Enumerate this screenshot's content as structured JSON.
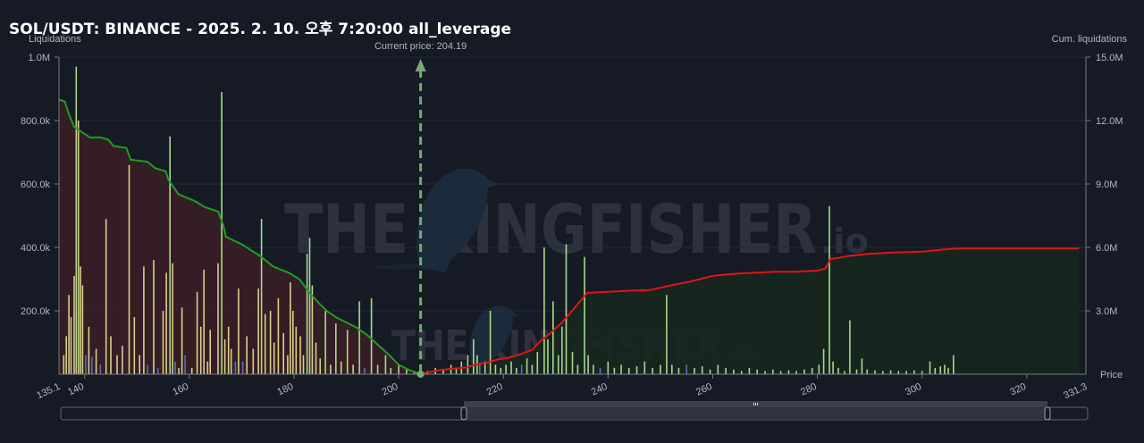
{
  "header": {
    "title": "SOL/USDT: BINANCE - 2025. 2. 10. 오후 7:20:00 all_leverage"
  },
  "colors": {
    "background": "#161a25",
    "short_cum_line": "#1f9d1f",
    "long_cum_line": "#e01515",
    "short_area": "#3a1f26",
    "long_area": "#17271f",
    "bar_green": "#a8d88e",
    "bar_yellow": "#d8d08a",
    "bar_blue": "#5b6fb5",
    "current_price_line": "#77a877"
  },
  "watermark": {
    "brand": "THE KINGFISHER",
    "suffix": ".io",
    "icon": "kingfisher-bird-icon"
  },
  "chart_data": {
    "type": "bar",
    "title": "SOL/USDT: BINANCE - 2025. 2. 10. 오후 7:20:00 all_leverage",
    "xlabel": "Price",
    "ylabel": "Liquidations",
    "ylabel_right": "Cum. liquidations",
    "xlim": [
      135.1,
      331.3
    ],
    "ylim": [
      0,
      1000000
    ],
    "ylim_right": [
      0,
      15000000
    ],
    "x_ticks": [
      140,
      160,
      180,
      200,
      220,
      240,
      260,
      280,
      300,
      320
    ],
    "x_tick_labels": [
      "140",
      "160",
      "180",
      "200",
      "220",
      "240",
      "260",
      "280",
      "300",
      "320"
    ],
    "x_edge_labels": [
      "135.1",
      "331.3"
    ],
    "y_ticks": [
      200000,
      400000,
      600000,
      800000,
      1000000
    ],
    "y_tick_labels": [
      "200.0k",
      "400.0k",
      "600.0k",
      "800.0k",
      "1.0M"
    ],
    "y_right_ticks": [
      3000000,
      6000000,
      9000000,
      12000000,
      15000000
    ],
    "y_right_tick_labels": [
      "3.0M",
      "6.0M",
      "9.0M",
      "12.0M",
      "15.0M"
    ],
    "current_price": {
      "value": 204.19,
      "label": "Current price: 204.19"
    },
    "grid": true,
    "legend": "none",
    "bars": [
      {
        "x": 136.0,
        "y": 60000,
        "c": "y"
      },
      {
        "x": 136.5,
        "y": 120000,
        "c": "y"
      },
      {
        "x": 137.0,
        "y": 250000,
        "c": "y"
      },
      {
        "x": 137.4,
        "y": 180000,
        "c": "y"
      },
      {
        "x": 138.0,
        "y": 310000,
        "c": "y"
      },
      {
        "x": 138.4,
        "y": 970000,
        "c": "g"
      },
      {
        "x": 138.8,
        "y": 800000,
        "c": "y"
      },
      {
        "x": 139.2,
        "y": 340000,
        "c": "y"
      },
      {
        "x": 139.6,
        "y": 280000,
        "c": "y"
      },
      {
        "x": 140.2,
        "y": 60000,
        "c": "b"
      },
      {
        "x": 140.8,
        "y": 150000,
        "c": "y"
      },
      {
        "x": 141.4,
        "y": 55000,
        "c": "b"
      },
      {
        "x": 142.2,
        "y": 80000,
        "c": "y"
      },
      {
        "x": 143.0,
        "y": 30000,
        "c": "b"
      },
      {
        "x": 144.1,
        "y": 490000,
        "c": "y"
      },
      {
        "x": 145.0,
        "y": 120000,
        "c": "y"
      },
      {
        "x": 146.2,
        "y": 60000,
        "c": "y"
      },
      {
        "x": 147.2,
        "y": 90000,
        "c": "y"
      },
      {
        "x": 148.5,
        "y": 660000,
        "c": "y"
      },
      {
        "x": 149.5,
        "y": 180000,
        "c": "y"
      },
      {
        "x": 150.5,
        "y": 60000,
        "c": "y"
      },
      {
        "x": 151.3,
        "y": 340000,
        "c": "y"
      },
      {
        "x": 152.0,
        "y": 30000,
        "c": "b"
      },
      {
        "x": 153.2,
        "y": 360000,
        "c": "y"
      },
      {
        "x": 154.0,
        "y": 20000,
        "c": "b"
      },
      {
        "x": 155.0,
        "y": 200000,
        "c": "y"
      },
      {
        "x": 155.6,
        "y": 320000,
        "c": "y"
      },
      {
        "x": 156.3,
        "y": 750000,
        "c": "g"
      },
      {
        "x": 156.8,
        "y": 350000,
        "c": "y"
      },
      {
        "x": 157.3,
        "y": 40000,
        "c": "b"
      },
      {
        "x": 158.0,
        "y": 20000,
        "c": "y"
      },
      {
        "x": 158.6,
        "y": 210000,
        "c": "y"
      },
      {
        "x": 159.2,
        "y": 60000,
        "c": "b"
      },
      {
        "x": 160.5,
        "y": 20000,
        "c": "y"
      },
      {
        "x": 161.5,
        "y": 260000,
        "c": "y"
      },
      {
        "x": 162.2,
        "y": 150000,
        "c": "y"
      },
      {
        "x": 162.8,
        "y": 330000,
        "c": "y"
      },
      {
        "x": 163.5,
        "y": 40000,
        "c": "y"
      },
      {
        "x": 164.0,
        "y": 140000,
        "c": "y"
      },
      {
        "x": 165.5,
        "y": 350000,
        "c": "y"
      },
      {
        "x": 166.2,
        "y": 890000,
        "c": "g"
      },
      {
        "x": 166.8,
        "y": 110000,
        "c": "y"
      },
      {
        "x": 167.5,
        "y": 150000,
        "c": "y"
      },
      {
        "x": 168.0,
        "y": 80000,
        "c": "y"
      },
      {
        "x": 168.8,
        "y": 40000,
        "c": "b"
      },
      {
        "x": 169.4,
        "y": 270000,
        "c": "y"
      },
      {
        "x": 170.2,
        "y": 40000,
        "c": "b"
      },
      {
        "x": 171.0,
        "y": 120000,
        "c": "y"
      },
      {
        "x": 172.2,
        "y": 80000,
        "c": "y"
      },
      {
        "x": 173.2,
        "y": 270000,
        "c": "y"
      },
      {
        "x": 173.8,
        "y": 490000,
        "c": "g"
      },
      {
        "x": 174.5,
        "y": 190000,
        "c": "y"
      },
      {
        "x": 175.5,
        "y": 200000,
        "c": "y"
      },
      {
        "x": 176.2,
        "y": 100000,
        "c": "y"
      },
      {
        "x": 177.0,
        "y": 240000,
        "c": "y"
      },
      {
        "x": 178.0,
        "y": 130000,
        "c": "y"
      },
      {
        "x": 178.8,
        "y": 60000,
        "c": "y"
      },
      {
        "x": 179.3,
        "y": 290000,
        "c": "y"
      },
      {
        "x": 179.8,
        "y": 200000,
        "c": "y"
      },
      {
        "x": 180.4,
        "y": 150000,
        "c": "y"
      },
      {
        "x": 181.2,
        "y": 120000,
        "c": "y"
      },
      {
        "x": 181.8,
        "y": 60000,
        "c": "y"
      },
      {
        "x": 182.5,
        "y": 380000,
        "c": "g"
      },
      {
        "x": 183.0,
        "y": 430000,
        "c": "g"
      },
      {
        "x": 183.5,
        "y": 280000,
        "c": "y"
      },
      {
        "x": 184.2,
        "y": 100000,
        "c": "y"
      },
      {
        "x": 185.0,
        "y": 50000,
        "c": "y"
      },
      {
        "x": 186.0,
        "y": 200000,
        "c": "g"
      },
      {
        "x": 187.0,
        "y": 30000,
        "c": "y"
      },
      {
        "x": 188.0,
        "y": 160000,
        "c": "g"
      },
      {
        "x": 189.0,
        "y": 40000,
        "c": "y"
      },
      {
        "x": 190.2,
        "y": 140000,
        "c": "g"
      },
      {
        "x": 191.3,
        "y": 30000,
        "c": "y"
      },
      {
        "x": 192.5,
        "y": 230000,
        "c": "g"
      },
      {
        "x": 193.5,
        "y": 20000,
        "c": "b"
      },
      {
        "x": 194.8,
        "y": 240000,
        "c": "g"
      },
      {
        "x": 196.0,
        "y": 30000,
        "c": "g"
      },
      {
        "x": 197.5,
        "y": 60000,
        "c": "g"
      },
      {
        "x": 198.5,
        "y": 20000,
        "c": "g"
      },
      {
        "x": 200.0,
        "y": 30000,
        "c": "g"
      },
      {
        "x": 201.5,
        "y": 15000,
        "c": "g"
      },
      {
        "x": 203.0,
        "y": 10000,
        "c": "g"
      },
      {
        "x": 205.5,
        "y": 10000,
        "c": "g"
      },
      {
        "x": 207.0,
        "y": 20000,
        "c": "g"
      },
      {
        "x": 208.5,
        "y": 15000,
        "c": "g"
      },
      {
        "x": 210.0,
        "y": 30000,
        "c": "g"
      },
      {
        "x": 211.0,
        "y": 20000,
        "c": "g"
      },
      {
        "x": 212.0,
        "y": 40000,
        "c": "g"
      },
      {
        "x": 213.2,
        "y": 60000,
        "c": "g"
      },
      {
        "x": 214.3,
        "y": 110000,
        "c": "g"
      },
      {
        "x": 215.0,
        "y": 60000,
        "c": "g"
      },
      {
        "x": 215.5,
        "y": 30000,
        "c": "b"
      },
      {
        "x": 216.5,
        "y": 40000,
        "c": "g"
      },
      {
        "x": 217.5,
        "y": 200000,
        "c": "g"
      },
      {
        "x": 218.5,
        "y": 30000,
        "c": "g"
      },
      {
        "x": 219.5,
        "y": 20000,
        "c": "g"
      },
      {
        "x": 220.5,
        "y": 30000,
        "c": "g"
      },
      {
        "x": 221.5,
        "y": 40000,
        "c": "g"
      },
      {
        "x": 222.5,
        "y": 20000,
        "c": "g"
      },
      {
        "x": 223.5,
        "y": 30000,
        "c": "b"
      },
      {
        "x": 224.5,
        "y": 50000,
        "c": "g"
      },
      {
        "x": 225.5,
        "y": 30000,
        "c": "g"
      },
      {
        "x": 226.5,
        "y": 70000,
        "c": "g"
      },
      {
        "x": 227.8,
        "y": 400000,
        "c": "g"
      },
      {
        "x": 228.5,
        "y": 110000,
        "c": "g"
      },
      {
        "x": 229.5,
        "y": 230000,
        "c": "g"
      },
      {
        "x": 230.5,
        "y": 60000,
        "c": "g"
      },
      {
        "x": 231.2,
        "y": 150000,
        "c": "g"
      },
      {
        "x": 232.0,
        "y": 410000,
        "c": "g"
      },
      {
        "x": 233.2,
        "y": 70000,
        "c": "g"
      },
      {
        "x": 234.2,
        "y": 30000,
        "c": "g"
      },
      {
        "x": 235.5,
        "y": 370000,
        "c": "g"
      },
      {
        "x": 236.2,
        "y": 60000,
        "c": "g"
      },
      {
        "x": 237.2,
        "y": 30000,
        "c": "g"
      },
      {
        "x": 238.5,
        "y": 20000,
        "c": "b"
      },
      {
        "x": 240.0,
        "y": 40000,
        "c": "g"
      },
      {
        "x": 241.2,
        "y": 20000,
        "c": "g"
      },
      {
        "x": 242.5,
        "y": 30000,
        "c": "g"
      },
      {
        "x": 244.0,
        "y": 20000,
        "c": "g"
      },
      {
        "x": 245.5,
        "y": 25000,
        "c": "g"
      },
      {
        "x": 247.0,
        "y": 40000,
        "c": "g"
      },
      {
        "x": 248.5,
        "y": 20000,
        "c": "g"
      },
      {
        "x": 250.0,
        "y": 30000,
        "c": "g"
      },
      {
        "x": 251.2,
        "y": 250000,
        "c": "g"
      },
      {
        "x": 252.2,
        "y": 30000,
        "c": "g"
      },
      {
        "x": 253.5,
        "y": 20000,
        "c": "g"
      },
      {
        "x": 255.0,
        "y": 30000,
        "c": "b"
      },
      {
        "x": 256.5,
        "y": 20000,
        "c": "g"
      },
      {
        "x": 258.0,
        "y": 25000,
        "c": "g"
      },
      {
        "x": 259.5,
        "y": 15000,
        "c": "g"
      },
      {
        "x": 261.0,
        "y": 30000,
        "c": "g"
      },
      {
        "x": 262.5,
        "y": 20000,
        "c": "g"
      },
      {
        "x": 264.0,
        "y": 15000,
        "c": "g"
      },
      {
        "x": 265.5,
        "y": 10000,
        "c": "g"
      },
      {
        "x": 267.0,
        "y": 20000,
        "c": "g"
      },
      {
        "x": 268.5,
        "y": 15000,
        "c": "g"
      },
      {
        "x": 270.0,
        "y": 10000,
        "c": "g"
      },
      {
        "x": 271.5,
        "y": 15000,
        "c": "g"
      },
      {
        "x": 273.0,
        "y": 10000,
        "c": "g"
      },
      {
        "x": 274.5,
        "y": 12000,
        "c": "g"
      },
      {
        "x": 276.0,
        "y": 10000,
        "c": "g"
      },
      {
        "x": 277.5,
        "y": 15000,
        "c": "g"
      },
      {
        "x": 279.0,
        "y": 20000,
        "c": "g"
      },
      {
        "x": 280.3,
        "y": 30000,
        "c": "g"
      },
      {
        "x": 281.2,
        "y": 80000,
        "c": "g"
      },
      {
        "x": 282.3,
        "y": 530000,
        "c": "g"
      },
      {
        "x": 283.0,
        "y": 40000,
        "c": "g"
      },
      {
        "x": 284.0,
        "y": 20000,
        "c": "g"
      },
      {
        "x": 285.2,
        "y": 10000,
        "c": "g"
      },
      {
        "x": 286.2,
        "y": 170000,
        "c": "g"
      },
      {
        "x": 287.5,
        "y": 15000,
        "c": "g"
      },
      {
        "x": 288.5,
        "y": 50000,
        "c": "g"
      },
      {
        "x": 289.5,
        "y": 15000,
        "c": "g"
      },
      {
        "x": 291.0,
        "y": 12000,
        "c": "g"
      },
      {
        "x": 292.5,
        "y": 10000,
        "c": "g"
      },
      {
        "x": 294.0,
        "y": 12000,
        "c": "g"
      },
      {
        "x": 295.5,
        "y": 10000,
        "c": "g"
      },
      {
        "x": 297.0,
        "y": 10000,
        "c": "g"
      },
      {
        "x": 298.5,
        "y": 12000,
        "c": "g"
      },
      {
        "x": 300.0,
        "y": 10000,
        "c": "g"
      },
      {
        "x": 301.5,
        "y": 40000,
        "c": "g"
      },
      {
        "x": 302.5,
        "y": 20000,
        "c": "g"
      },
      {
        "x": 303.5,
        "y": 25000,
        "c": "g"
      },
      {
        "x": 304.3,
        "y": 30000,
        "c": "g"
      },
      {
        "x": 305.0,
        "y": 20000,
        "c": "g"
      },
      {
        "x": 306.0,
        "y": 60000,
        "c": "g"
      }
    ],
    "cum_short": [
      [
        135.1,
        13000000
      ],
      [
        136.2,
        12900000
      ],
      [
        137.0,
        12300000
      ],
      [
        138.0,
        11700000
      ],
      [
        139.2,
        11500000
      ],
      [
        141.0,
        11200000
      ],
      [
        143.0,
        11200000
      ],
      [
        144.5,
        11100000
      ],
      [
        145.5,
        10800000
      ],
      [
        148.0,
        10700000
      ],
      [
        148.8,
        10150000
      ],
      [
        152.0,
        10050000
      ],
      [
        153.5,
        9750000
      ],
      [
        155.5,
        9600000
      ],
      [
        156.0,
        9200000
      ],
      [
        158.0,
        8500000
      ],
      [
        161.0,
        8200000
      ],
      [
        163.0,
        7900000
      ],
      [
        165.5,
        7700000
      ],
      [
        166.5,
        7050000
      ],
      [
        167.0,
        6500000
      ],
      [
        170.0,
        6150000
      ],
      [
        173.5,
        5600000
      ],
      [
        176.0,
        5100000
      ],
      [
        179.0,
        4800000
      ],
      [
        181.0,
        4500000
      ],
      [
        183.0,
        3850000
      ],
      [
        185.0,
        3300000
      ],
      [
        186.5,
        2950000
      ],
      [
        188.0,
        2700000
      ],
      [
        190.0,
        2450000
      ],
      [
        192.0,
        2200000
      ],
      [
        194.0,
        1850000
      ],
      [
        196.0,
        1400000
      ],
      [
        198.0,
        950000
      ],
      [
        200.0,
        450000
      ],
      [
        202.0,
        200000
      ],
      [
        204.19,
        0
      ]
    ],
    "cum_long": [
      [
        204.19,
        0
      ],
      [
        206.0,
        120000
      ],
      [
        208.0,
        200000
      ],
      [
        211.0,
        280000
      ],
      [
        213.0,
        320000
      ],
      [
        214.5,
        450000
      ],
      [
        217.0,
        550000
      ],
      [
        219.0,
        700000
      ],
      [
        221.0,
        780000
      ],
      [
        223.0,
        920000
      ],
      [
        225.5,
        1150000
      ],
      [
        227.0,
        1550000
      ],
      [
        229.0,
        1950000
      ],
      [
        231.0,
        2400000
      ],
      [
        233.0,
        2950000
      ],
      [
        234.8,
        3500000
      ],
      [
        236.0,
        3850000
      ],
      [
        240.0,
        3900000
      ],
      [
        244.0,
        3950000
      ],
      [
        248.0,
        3980000
      ],
      [
        251.0,
        4150000
      ],
      [
        253.0,
        4250000
      ],
      [
        256.0,
        4400000
      ],
      [
        260.0,
        4650000
      ],
      [
        264.0,
        4750000
      ],
      [
        268.0,
        4800000
      ],
      [
        272.0,
        4850000
      ],
      [
        276.0,
        4850000
      ],
      [
        280.0,
        4900000
      ],
      [
        281.5,
        5000000
      ],
      [
        282.5,
        5450000
      ],
      [
        284.0,
        5500000
      ],
      [
        286.0,
        5600000
      ],
      [
        290.0,
        5700000
      ],
      [
        294.0,
        5750000
      ],
      [
        300.0,
        5800000
      ],
      [
        304.0,
        5900000
      ],
      [
        307.0,
        5950000
      ],
      [
        312.0,
        5950000
      ],
      [
        320.0,
        5950000
      ],
      [
        330.0,
        5950000
      ]
    ]
  }
}
